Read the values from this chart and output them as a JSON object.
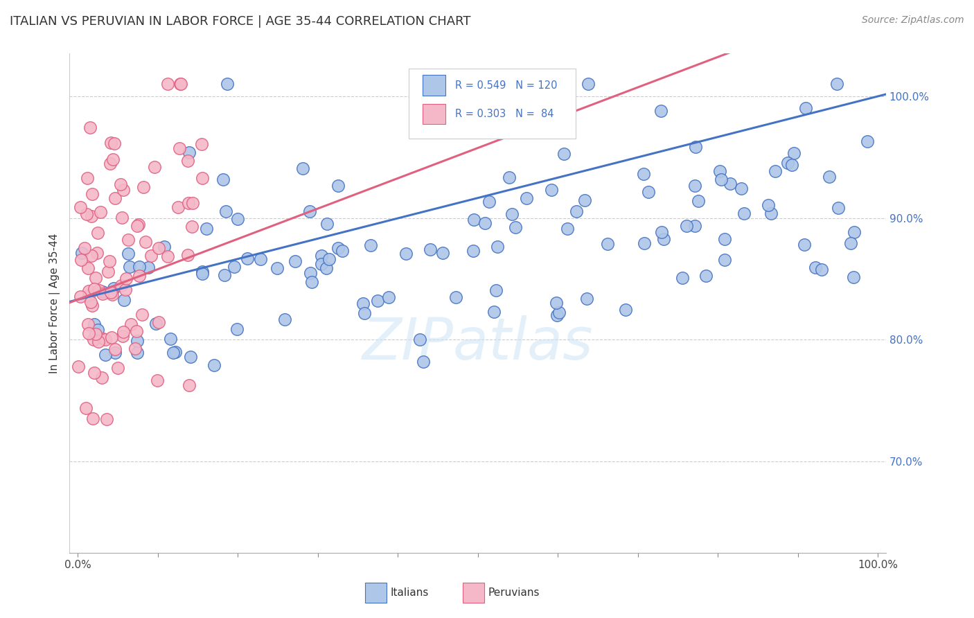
{
  "title": "ITALIAN VS PERUVIAN IN LABOR FORCE | AGE 35-44 CORRELATION CHART",
  "source": "Source: ZipAtlas.com",
  "ylabel": "In Labor Force | Age 35-44",
  "ytick_labels": [
    "100.0%",
    "90.0%",
    "80.0%",
    "70.0%"
  ],
  "ytick_values": [
    1.0,
    0.9,
    0.8,
    0.7
  ],
  "xlim": [
    -0.01,
    1.01
  ],
  "ylim": [
    0.625,
    1.035
  ],
  "italian_R": 0.549,
  "italian_N": 120,
  "peruvian_R": 0.303,
  "peruvian_N": 84,
  "italian_color": "#aec6e8",
  "peruvian_color": "#f4b8c8",
  "italian_line_color": "#4472c4",
  "peruvian_line_color": "#e06080",
  "legend_text_color": "#4472c4",
  "background_color": "#ffffff",
  "title_fontsize": 13,
  "axis_label_fontsize": 11,
  "tick_fontsize": 11
}
